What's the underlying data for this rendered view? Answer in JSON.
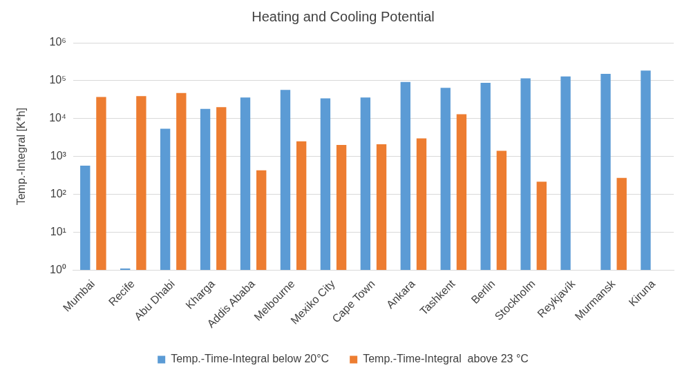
{
  "chart_data": {
    "type": "bar",
    "title": "Heating and Cooling Potential",
    "ylabel": "Temp.-Integral [K*h]",
    "categories": [
      "Mumbai",
      "Recife",
      "Abu Dhabi",
      "Kharga",
      "Addis Ababa",
      "Melbourne",
      "Mexiko City",
      "Cape Town",
      "Ankara",
      "Tashkent",
      "Berlin",
      "Stockholm",
      "Reykjavík",
      "Murmansk",
      "Kiruna"
    ],
    "series": [
      {
        "name": "Temp.-Time-Integral below 20°C",
        "color": "#5b9bd5",
        "values": [
          570,
          1.1,
          5400,
          18000,
          36000,
          57000,
          34000,
          36000,
          92000,
          65000,
          88000,
          115000,
          130000,
          152000,
          185000
        ]
      },
      {
        "name": "Temp.-Time-Integral  above 23 °C",
        "color": "#ed7d31",
        "values": [
          37000,
          39000,
          47000,
          20000,
          430,
          2500,
          2000,
          2100,
          3000,
          13000,
          1400,
          215,
          null,
          270,
          null
        ]
      }
    ],
    "log": true,
    "ylim": [
      1,
      1000000
    ],
    "yticks": [
      {
        "value": 1,
        "label": "10⁰"
      },
      {
        "value": 10,
        "label": "10¹"
      },
      {
        "value": 100,
        "label": "10²"
      },
      {
        "value": 1000,
        "label": "10³"
      },
      {
        "value": 10000,
        "label": "10⁴"
      },
      {
        "value": 100000,
        "label": "10⁵"
      },
      {
        "value": 1000000,
        "label": "10⁶"
      }
    ],
    "grid": "y",
    "legend": "bottom"
  }
}
